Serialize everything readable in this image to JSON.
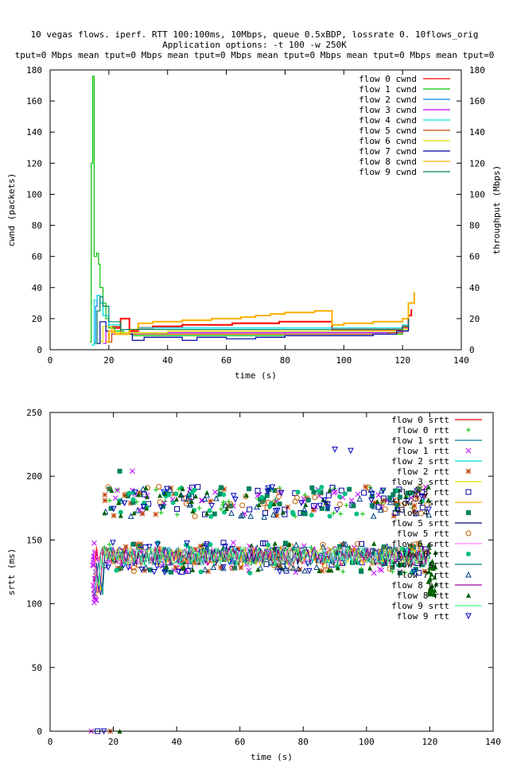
{
  "header": {
    "line1": "10 vegas flows. iperf. RTT 100:100ms, 10Mbps, queue 0.5xBDP, lossrate 0. 10flows_orig",
    "line2": "Application options: -t 100 -w 250K",
    "line3": "tput=0 Mbps mean tput=0 Mbps mean tput=0 Mbps mean tput=0 Mbps mean tput=0 Mbps mean tput=0"
  },
  "chart_data": [
    {
      "type": "line",
      "xlabel": "time (s)",
      "ylabel": "cwnd (packets)",
      "y2label": "throughput (Mbps)",
      "xlim": [
        0,
        140
      ],
      "ylim": [
        0,
        180
      ],
      "y2lim": [
        0,
        180
      ],
      "xticks": [
        0,
        20,
        40,
        60,
        80,
        100,
        120,
        140
      ],
      "yticks": [
        0,
        20,
        40,
        60,
        80,
        100,
        120,
        140,
        160,
        180
      ],
      "legend_position": "top-right",
      "series": [
        {
          "name": "flow 0 cwnd",
          "color": "#ff0000",
          "points": [
            [
              21,
              14
            ],
            [
              24,
              20
            ],
            [
              27,
              12
            ],
            [
              30,
              14
            ],
            [
              35,
              15
            ],
            [
              40,
              15
            ],
            [
              45,
              16
            ],
            [
              55,
              16
            ],
            [
              62,
              17
            ],
            [
              68,
              17
            ],
            [
              78,
              18
            ],
            [
              84,
              18
            ],
            [
              88,
              18
            ],
            [
              96,
              13
            ],
            [
              104,
              13
            ],
            [
              112,
              13
            ],
            [
              118,
              13
            ],
            [
              120,
              15
            ],
            [
              122,
              22
            ],
            [
              123,
              26
            ]
          ]
        },
        {
          "name": "flow 1 cwnd",
          "color": "#00c000",
          "points": [
            [
              13.5,
              5
            ],
            [
              14,
              120
            ],
            [
              14.5,
              176
            ],
            [
              15,
              60
            ],
            [
              15.8,
              62
            ],
            [
              16.5,
              55
            ],
            [
              17,
              40
            ],
            [
              18,
              30
            ],
            [
              19,
              20
            ],
            [
              20,
              14
            ],
            [
              22,
              12
            ],
            [
              25,
              10
            ],
            [
              28,
              9
            ],
            [
              32,
              9
            ],
            [
              40,
              9
            ],
            [
              50,
              9
            ],
            [
              60,
              9
            ],
            [
              70,
              9
            ],
            [
              80,
              9
            ],
            [
              90,
              9
            ],
            [
              100,
              9
            ],
            [
              110,
              10
            ],
            [
              118,
              10
            ],
            [
              120,
              12
            ],
            [
              122,
              18
            ]
          ]
        },
        {
          "name": "flow 2 cwnd",
          "color": "#0080ff",
          "points": [
            [
              15,
              5
            ],
            [
              15.5,
              28
            ],
            [
              16,
              35
            ],
            [
              17,
              30
            ],
            [
              18,
              22
            ],
            [
              20,
              15
            ],
            [
              24,
              11
            ],
            [
              28,
              10
            ],
            [
              32,
              10
            ],
            [
              40,
              10
            ],
            [
              50,
              10
            ],
            [
              60,
              10
            ],
            [
              70,
              10
            ],
            [
              80,
              11
            ],
            [
              90,
              11
            ],
            [
              100,
              11
            ],
            [
              110,
              11
            ],
            [
              118,
              11
            ],
            [
              120,
              13
            ],
            [
              122,
              18
            ]
          ]
        },
        {
          "name": "flow 3 cwnd",
          "color": "#c000ff",
          "points": [
            [
              18,
              4
            ],
            [
              19,
              12
            ],
            [
              21,
              10
            ],
            [
              24,
              10
            ],
            [
              28,
              11
            ],
            [
              35,
              11
            ],
            [
              45,
              11
            ],
            [
              55,
              11
            ],
            [
              65,
              11
            ],
            [
              75,
              11
            ],
            [
              85,
              11
            ],
            [
              95,
              11
            ],
            [
              105,
              11
            ],
            [
              115,
              11
            ],
            [
              120,
              13
            ],
            [
              122,
              18
            ]
          ]
        },
        {
          "name": "flow 4 cwnd",
          "color": "#00e0e0",
          "points": [
            [
              14,
              3
            ],
            [
              15,
              32
            ],
            [
              16,
              35
            ],
            [
              17,
              30
            ],
            [
              18,
              22
            ],
            [
              20,
              16
            ],
            [
              24,
              13
            ],
            [
              30,
              14
            ],
            [
              40,
              14
            ],
            [
              50,
              14
            ],
            [
              60,
              14
            ],
            [
              70,
              14
            ],
            [
              80,
              14
            ],
            [
              90,
              14
            ],
            [
              100,
              14
            ],
            [
              110,
              14
            ],
            [
              118,
              14
            ],
            [
              120,
              16
            ],
            [
              122,
              20
            ]
          ]
        },
        {
          "name": "flow 5 cwnd",
          "color": "#c04000",
          "points": [
            [
              20,
              5
            ],
            [
              21,
              15
            ],
            [
              24,
              10
            ],
            [
              28,
              10
            ],
            [
              35,
              10
            ],
            [
              45,
              10
            ],
            [
              55,
              10
            ],
            [
              65,
              10
            ],
            [
              75,
              10
            ],
            [
              85,
              10
            ],
            [
              95,
              10
            ],
            [
              105,
              10
            ],
            [
              115,
              11
            ],
            [
              120,
              14
            ],
            [
              122,
              22
            ]
          ]
        },
        {
          "name": "flow 6 cwnd",
          "color": "#e0e000",
          "points": [
            [
              17,
              5
            ],
            [
              18,
              15
            ],
            [
              21,
              11
            ],
            [
              25,
              11
            ],
            [
              30,
              11
            ],
            [
              40,
              12
            ],
            [
              50,
              12
            ],
            [
              60,
              12
            ],
            [
              70,
              12
            ],
            [
              80,
              12
            ],
            [
              90,
              12
            ],
            [
              100,
              12
            ],
            [
              110,
              12
            ],
            [
              118,
              12
            ],
            [
              120,
              13
            ],
            [
              122,
              18
            ]
          ]
        },
        {
          "name": "flow 7 cwnd",
          "color": "#0000a0",
          "points": [
            [
              16,
              4
            ],
            [
              17,
              18
            ],
            [
              19,
              12
            ],
            [
              22,
              10
            ],
            [
              28,
              6
            ],
            [
              32,
              8
            ],
            [
              40,
              8
            ],
            [
              45,
              6
            ],
            [
              50,
              8
            ],
            [
              60,
              7
            ],
            [
              70,
              8
            ],
            [
              80,
              9
            ],
            [
              90,
              9
            ],
            [
              100,
              9
            ],
            [
              110,
              10
            ],
            [
              118,
              12
            ],
            [
              122,
              20
            ]
          ]
        },
        {
          "name": "flow 8 cwnd",
          "color": "#ffb000",
          "points": [
            [
              19,
              5
            ],
            [
              20,
              12
            ],
            [
              22,
              10
            ],
            [
              27,
              13
            ],
            [
              30,
              17
            ],
            [
              35,
              18
            ],
            [
              45,
              19
            ],
            [
              55,
              20
            ],
            [
              65,
              21
            ],
            [
              70,
              22
            ],
            [
              75,
              23
            ],
            [
              80,
              24
            ],
            [
              85,
              24
            ],
            [
              90,
              25
            ],
            [
              93,
              25
            ],
            [
              96,
              16
            ],
            [
              100,
              17
            ],
            [
              110,
              18
            ],
            [
              118,
              18
            ],
            [
              120,
              20
            ],
            [
              122,
              30
            ],
            [
              124,
              37
            ]
          ]
        },
        {
          "name": "flow 9 cwnd",
          "color": "#008060",
          "points": [
            [
              15,
              4
            ],
            [
              16,
              25
            ],
            [
              17,
              34
            ],
            [
              18,
              28
            ],
            [
              20,
              18
            ],
            [
              24,
              13
            ],
            [
              30,
              13
            ],
            [
              40,
              13
            ],
            [
              50,
              13
            ],
            [
              60,
              13
            ],
            [
              70,
              13
            ],
            [
              80,
              13
            ],
            [
              90,
              13
            ],
            [
              100,
              13
            ],
            [
              110,
              13
            ],
            [
              118,
              13
            ],
            [
              120,
              15
            ],
            [
              122,
              20
            ]
          ]
        }
      ]
    },
    {
      "type": "scatter",
      "xlabel": "time (s)",
      "ylabel": "srtt (ms)",
      "xlim": [
        0,
        140
      ],
      "ylim": [
        0,
        250
      ],
      "xticks": [
        0,
        20,
        40,
        60,
        80,
        100,
        120,
        140
      ],
      "yticks": [
        0,
        50,
        100,
        150,
        200,
        250
      ],
      "legend_position": "top-right",
      "srtt_band": {
        "x": [
          14,
          120
        ],
        "y": [
          125,
          150
        ]
      },
      "rtt_band_upper": {
        "x": [
          17,
          120
        ],
        "y": [
          168,
          192
        ]
      },
      "series": [
        {
          "name": "flow 0 srtt",
          "color": "#ff0000",
          "marker": "line"
        },
        {
          "name": "flow 0 rtt",
          "color": "#00c000",
          "marker": "plus"
        },
        {
          "name": "flow 1 srtt",
          "color": "#0080a0",
          "marker": "line"
        },
        {
          "name": "flow 1 rtt",
          "color": "#c000ff",
          "marker": "x"
        },
        {
          "name": "flow 2 srtt",
          "color": "#00e0e0",
          "marker": "line"
        },
        {
          "name": "flow 2 rtt",
          "color": "#c04000",
          "marker": "star"
        },
        {
          "name": "flow 3 srtt",
          "color": "#e0e000",
          "marker": "line"
        },
        {
          "name": "flow 3 rtt",
          "color": "#0000a0",
          "marker": "square"
        },
        {
          "name": "flow 4 srtt",
          "color": "#ffb000",
          "marker": "line"
        },
        {
          "name": "flow 4 rtt",
          "color": "#008060",
          "marker": "filled-square"
        },
        {
          "name": "flow 5 srtt",
          "color": "#000080",
          "marker": "line"
        },
        {
          "name": "flow 5 rtt",
          "color": "#c06000",
          "marker": "circle"
        },
        {
          "name": "flow 6 srtt",
          "color": "#ff80ff",
          "marker": "line"
        },
        {
          "name": "flow 6 rtt",
          "color": "#00c080",
          "marker": "filled-circle"
        },
        {
          "name": "flow 7 srtt",
          "color": "#008080",
          "marker": "line"
        },
        {
          "name": "flow 7 rtt",
          "color": "#004080",
          "marker": "triangle"
        },
        {
          "name": "flow 8 srtt",
          "color": "#a000a0",
          "marker": "line"
        },
        {
          "name": "flow 8 rtt",
          "color": "#006000",
          "marker": "filled-triangle"
        },
        {
          "name": "flow 9 srtt",
          "color": "#40ff80",
          "marker": "line"
        },
        {
          "name": "flow 9 rtt",
          "color": "#0000c0",
          "marker": "inverted-triangle"
        }
      ],
      "outliers": [
        {
          "x": 90,
          "y": 221,
          "series": "flow 9 rtt"
        },
        {
          "x": 95,
          "y": 220,
          "series": "flow 9 rtt"
        },
        {
          "x": 26,
          "y": 204,
          "series": "flow 1 rtt"
        },
        {
          "x": 22,
          "y": 204,
          "series": "flow 4 rtt"
        },
        {
          "x": 13,
          "y": 0,
          "series": "flow 1 rtt"
        },
        {
          "x": 15,
          "y": 0,
          "series": "flow 3 rtt"
        },
        {
          "x": 17,
          "y": 0,
          "series": "flow 9 rtt"
        },
        {
          "x": 19,
          "y": 0,
          "series": "flow 2 rtt"
        },
        {
          "x": 22,
          "y": 0,
          "series": "flow 8 rtt"
        }
      ]
    }
  ]
}
